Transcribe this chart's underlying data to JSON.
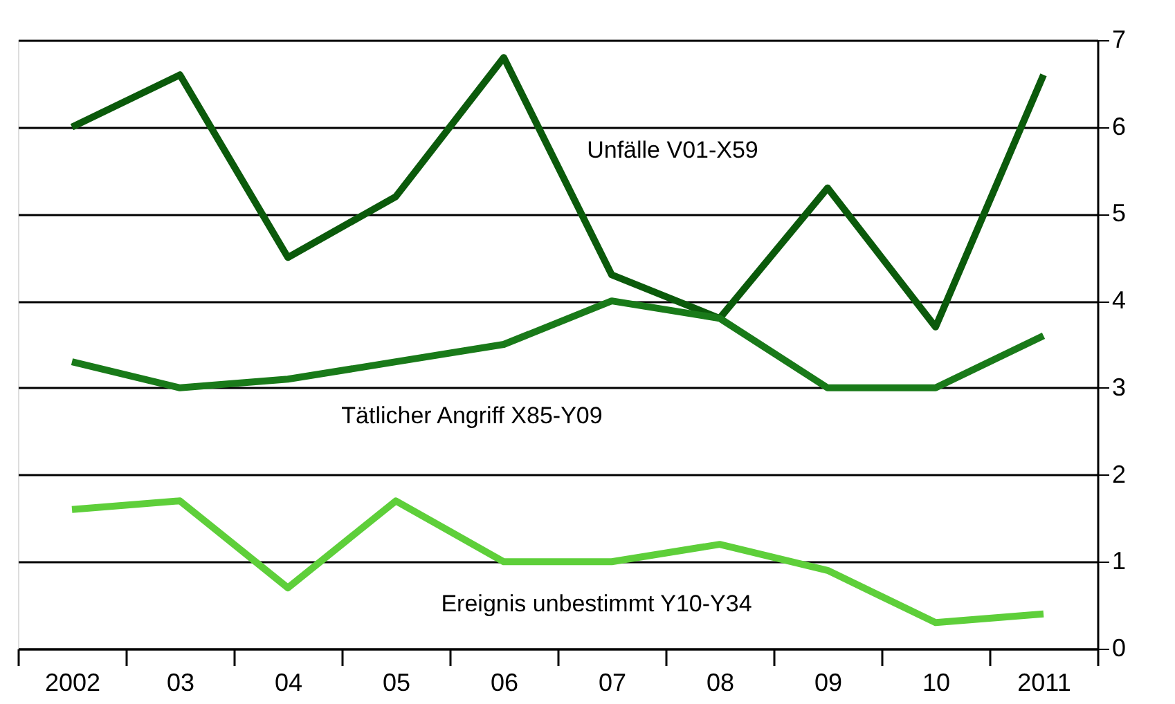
{
  "chart_data": {
    "type": "line",
    "categories": [
      "2002",
      "03",
      "04",
      "05",
      "06",
      "07",
      "08",
      "09",
      "10",
      "2011"
    ],
    "series": [
      {
        "name": "Unfälle V01-X59",
        "color": "#0b5a0b",
        "values": [
          6.0,
          6.6,
          4.5,
          5.2,
          6.8,
          4.3,
          3.8,
          5.3,
          3.7,
          6.6
        ]
      },
      {
        "name": "Tätlicher Angriff X85-Y09",
        "color": "#197a19",
        "values": [
          3.3,
          3.0,
          3.1,
          3.3,
          3.5,
          4.0,
          3.8,
          3.0,
          3.0,
          3.6
        ]
      },
      {
        "name": "Ereignis unbestimmt Y10-Y34",
        "color": "#5ecf3a",
        "values": [
          1.6,
          1.7,
          0.7,
          1.7,
          1.0,
          1.0,
          1.2,
          0.9,
          0.3,
          0.4
        ]
      }
    ],
    "ylim": [
      0,
      7
    ],
    "yticks": [
      0,
      1,
      2,
      3,
      4,
      5,
      6,
      7
    ],
    "grid": "y",
    "legend": false,
    "marker": "none",
    "line_style": "solid"
  }
}
